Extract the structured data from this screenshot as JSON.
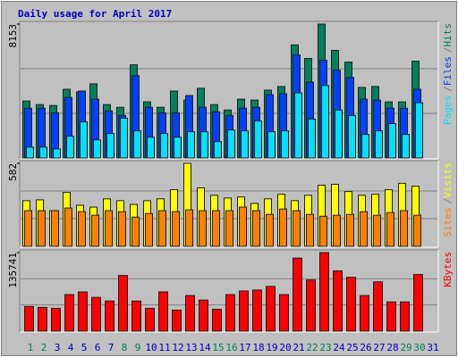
{
  "title": "Daily usage for April 2017",
  "legend_separator": "/",
  "chart_data": [
    {
      "type": "bar",
      "ylim": [
        0,
        8153
      ],
      "yticks": [
        8153
      ],
      "series": [
        {
          "name": "Hits",
          "color": "#00805c",
          "values": [
            3470,
            3250,
            3195,
            4187,
            4021,
            4517,
            3250,
            3085,
            5674,
            3415,
            3085,
            4076,
            3526,
            4242,
            3250,
            2920,
            3581,
            3526,
            4131,
            4352,
            6886,
            6060,
            8153,
            6555,
            5839,
            4297,
            4352,
            3415,
            3415,
            5894,
            null
          ]
        },
        {
          "name": "Files",
          "color": "#0040ff",
          "values": [
            3030,
            3030,
            2755,
            3691,
            4077,
            3581,
            2865,
            2589,
            5013,
            3085,
            2755,
            2755,
            3801,
            3085,
            2810,
            2589,
            3030,
            3085,
            3856,
            3911,
            6280,
            4628,
            5950,
            5344,
            4903,
            3581,
            3526,
            3030,
            3030,
            4187,
            null
          ]
        },
        {
          "name": "Pages",
          "color": "#00e0ff",
          "values": [
            661,
            661,
            551,
            1322,
            2204,
            1102,
            1487,
            2424,
            1653,
            1267,
            1487,
            1267,
            1598,
            1598,
            992,
            1708,
            1653,
            2259,
            1598,
            1653,
            3966,
            2369,
            4407,
            2920,
            2589,
            1432,
            1653,
            2093,
            1432,
            3360,
            null
          ]
        }
      ]
    },
    {
      "type": "bar",
      "ylim": [
        0,
        582
      ],
      "yticks": [
        582
      ],
      "series": [
        {
          "name": "Visits",
          "color": "#ffff00",
          "values": [
            320,
            326,
            250,
            378,
            288,
            275,
            333,
            320,
            294,
            320,
            333,
            397,
            582,
            410,
            358,
            339,
            346,
            301,
            333,
            365,
            320,
            358,
            429,
            435,
            384,
            358,
            365,
            397,
            442,
            422,
            null
          ]
        },
        {
          "name": "Sites",
          "color": "#ff8000",
          "values": [
            250,
            250,
            250,
            269,
            243,
            218,
            250,
            243,
            205,
            230,
            250,
            243,
            256,
            250,
            250,
            250,
            275,
            250,
            224,
            262,
            250,
            224,
            211,
            218,
            224,
            243,
            218,
            237,
            250,
            218,
            null
          ]
        }
      ]
    },
    {
      "type": "bar",
      "ylim": [
        0,
        135741
      ],
      "yticks": [
        135741
      ],
      "categories": [
        "1",
        "2",
        "3",
        "4",
        "5",
        "6",
        "7",
        "8",
        "9",
        "10",
        "11",
        "12",
        "13",
        "14",
        "15",
        "16",
        "17",
        "18",
        "19",
        "20",
        "21",
        "22",
        "23",
        "24",
        "25",
        "26",
        "27",
        "28",
        "29",
        "30",
        "31"
      ],
      "category_colors": [
        "#00805c",
        "#00805c",
        "#0000c0",
        "#0000c0",
        "#0000c0",
        "#0000c0",
        "#0000c0",
        "#00805c",
        "#00805c",
        "#0000c0",
        "#0000c0",
        "#0000c0",
        "#0000c0",
        "#0000c0",
        "#00805c",
        "#00805c",
        "#0000c0",
        "#0000c0",
        "#0000c0",
        "#0000c0",
        "#0000c0",
        "#00805c",
        "#00805c",
        "#0000c0",
        "#0000c0",
        "#0000c0",
        "#0000c0",
        "#0000c0",
        "#00805c",
        "#00805c",
        "#0000c0"
      ],
      "series": [
        {
          "name": "KBytes",
          "color": "#ff0000",
          "values": [
            42606,
            41028,
            39450,
            63120,
            67854,
            58386,
            52074,
            96258,
            52074,
            39450,
            67854,
            36294,
            61542,
            53652,
            37872,
            63120,
            69432,
            71010,
            77322,
            63120,
            126240,
            88368,
            135741,
            104148,
            93102,
            61542,
            85212,
            50496,
            50496,
            97836,
            null
          ]
        }
      ]
    }
  ]
}
